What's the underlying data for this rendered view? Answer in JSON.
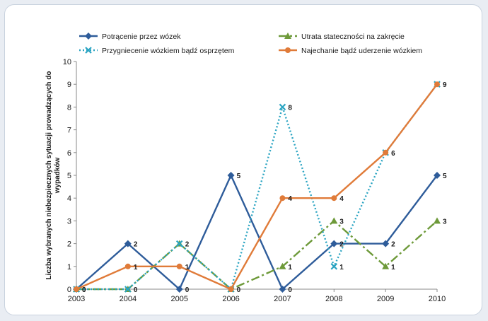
{
  "chart_data": {
    "type": "line",
    "title": "",
    "xlabel": "",
    "ylabel": "Liczba wybranych niebezpiecznych sytuacji prowadzących do wypadków",
    "x": [
      "2003",
      "2004",
      "2005",
      "2006",
      "2007",
      "2008",
      "2009",
      "2010"
    ],
    "ylim": [
      0,
      10
    ],
    "yticks": [
      "0",
      "1",
      "2",
      "3",
      "4",
      "5",
      "6",
      "7",
      "8",
      "9",
      "10"
    ],
    "grid": false,
    "legend_position": "top",
    "series": [
      {
        "name": "Potrącenie przez wózek",
        "color": "#2e5c9a",
        "line_style": "solid",
        "marker": "diamond",
        "values": [
          0,
          2,
          0,
          5,
          0,
          2,
          2,
          5
        ],
        "labels": [
          "0",
          "2",
          "0",
          "5",
          "0",
          "2",
          "2",
          "5"
        ]
      },
      {
        "name": "Utrata stateczności na zakręcie",
        "color": "#6e9a3a",
        "line_style": "dashdot",
        "marker": "triangle",
        "values": [
          0,
          0,
          2,
          0,
          1,
          3,
          1,
          3
        ],
        "labels": [
          "",
          "",
          "",
          "",
          "1",
          "3",
          "1",
          "3"
        ]
      },
      {
        "name": "Przygniecenie wózkiem bądź osprzętem",
        "color": "#2aa4c2",
        "line_style": "dotted",
        "marker": "x",
        "values": [
          0,
          0,
          2,
          0,
          8,
          1,
          6,
          9
        ],
        "labels": [
          "",
          "0",
          "2",
          "",
          "8",
          "1",
          "",
          ""
        ]
      },
      {
        "name": "Najechanie bądź uderzenie wózkiem",
        "color": "#e07b39",
        "line_style": "solid",
        "marker": "circle",
        "values": [
          0,
          1,
          1,
          0,
          4,
          4,
          6,
          9
        ],
        "labels": [
          "0",
          "1",
          "1",
          "0",
          "4",
          "4",
          "6",
          "9"
        ]
      }
    ]
  }
}
